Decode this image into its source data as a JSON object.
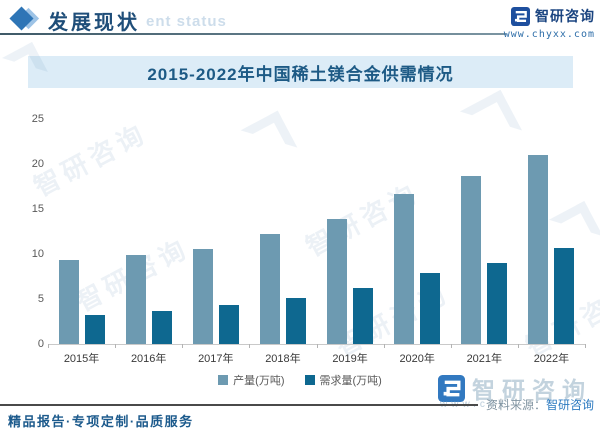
{
  "header": {
    "section_title": "发展现状",
    "watermark_text": "ent status",
    "brand_name": "智研咨询",
    "website": "www.chyxx.com"
  },
  "watermark": {
    "logo_text": "智研咨询"
  },
  "chart_data": {
    "type": "bar",
    "title": "2015-2022年中国稀土镁合金供需情况",
    "categories": [
      "2015年",
      "2016年",
      "2017年",
      "2018年",
      "2019年",
      "2020年",
      "2021年",
      "2022年"
    ],
    "series": [
      {
        "name": "产量(万吨)",
        "color": "#6d9ab1",
        "values": [
          9.3,
          9.9,
          10.5,
          12.2,
          13.9,
          16.7,
          18.7,
          21.0
        ]
      },
      {
        "name": "需求量(万吨)",
        "color": "#0e6890",
        "values": [
          3.2,
          3.7,
          4.3,
          5.1,
          6.2,
          7.9,
          9.0,
          10.7
        ]
      }
    ],
    "xlabel": "",
    "ylabel": "",
    "ylim": [
      0,
      25
    ],
    "yticks": [
      0,
      5,
      10,
      15,
      20,
      25
    ],
    "grid": false,
    "legend_position": "bottom"
  },
  "footer": {
    "tagline": "精品报告·专项定制·品质服务",
    "source_label": "资料来源：",
    "source_value": "智研咨询",
    "watermark_brand": "智研咨询",
    "watermark_site": "www.chyxx.com"
  },
  "colors": {
    "production_bar": "#6d9ab1",
    "demand_bar": "#0e6890",
    "title_band_bg": "#dcecf7",
    "title_text": "#1d5a85",
    "accent_blue": "#2e75b6",
    "brand_blue": "#1a4480"
  }
}
